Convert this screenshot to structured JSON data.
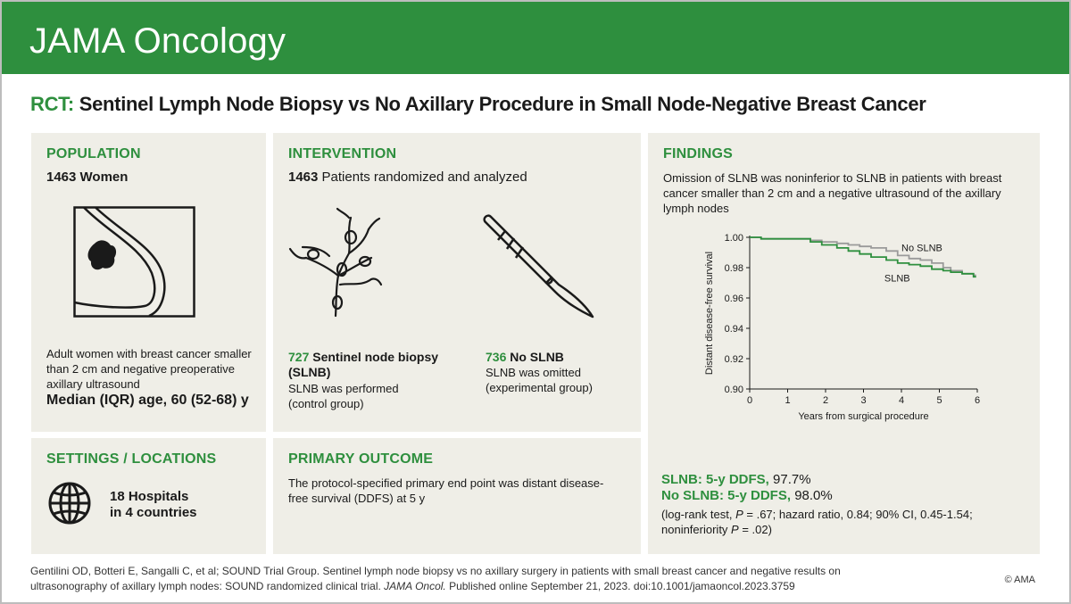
{
  "header": {
    "journal": "JAMA Oncology"
  },
  "title": {
    "tag": "RCT:",
    "text": "Sentinel Lymph Node Biopsy vs No Axillary Procedure in Small Node-Negative Breast Cancer"
  },
  "population": {
    "heading": "POPULATION",
    "count": "1463 Women",
    "icon": "breast-tumor-icon",
    "description": "Adult women with breast cancer smaller than 2 cm and negative preoperative axillary ultrasound",
    "median_age": "Median (IQR) age, 60 (52-68) y"
  },
  "intervention": {
    "heading": "INTERVENTION",
    "count": "1463",
    "count_text": "Patients randomized and analyzed",
    "arm1": {
      "count": "727",
      "name": "Sentinel node biopsy (SLNB)",
      "desc": "SLNB was performed (control group)",
      "icon": "lymph-nodes-icon"
    },
    "arm2": {
      "count": "736",
      "name": "No SLNB",
      "desc": "SLNB was omitted (experimental group)",
      "icon": "scalpel-icon"
    }
  },
  "findings": {
    "heading": "FINDINGS",
    "summary": "Omission of SLNB was noninferior to SLNB in patients with breast cancer smaller than 2 cm and a negative ultrasound of the axillary lymph nodes",
    "result1_label": "SLNB: 5-y DDFS,",
    "result1_value": "97.7%",
    "result2_label": "No SLNB: 5-y DDFS,",
    "result2_value": "98.0%",
    "stats_1": "(log-rank test, ",
    "stats_p": "P",
    "stats_2": " = .67; hazard ratio, 0.84; 90% CI, 0.45-1.54;",
    "stats_3": "noninferiority ",
    "stats_p2": "P",
    "stats_4": " = .02)"
  },
  "chart_data": {
    "type": "line",
    "xlabel": "Years from surgical procedure",
    "ylabel": "Distant disease-free survival",
    "xlim": [
      0,
      6
    ],
    "ylim": [
      0.9,
      1.0
    ],
    "xticks": [
      0,
      1,
      2,
      3,
      4,
      5,
      6
    ],
    "yticks": [
      "0.90",
      "0.92",
      "0.94",
      "0.96",
      "0.98",
      "1.00"
    ],
    "series": [
      {
        "name": "No SLNB",
        "color": "#9a9a9a",
        "x": [
          0,
          0.3,
          0.6,
          1.6,
          1.9,
          2.3,
          2.6,
          2.9,
          3.2,
          3.6,
          3.9,
          4.2,
          4.5,
          4.8,
          5.1,
          5.3,
          5.6,
          5.9
        ],
        "y": [
          1.0,
          0.999,
          0.999,
          0.998,
          0.997,
          0.996,
          0.995,
          0.994,
          0.993,
          0.991,
          0.988,
          0.986,
          0.985,
          0.983,
          0.98,
          0.978,
          0.976,
          0.975
        ]
      },
      {
        "name": "SLNB",
        "color": "#2e8f3e",
        "x": [
          0,
          0.3,
          0.6,
          1.6,
          1.9,
          2.3,
          2.6,
          2.9,
          3.2,
          3.6,
          3.9,
          4.2,
          4.5,
          4.8,
          5.1,
          5.3,
          5.6,
          5.9
        ],
        "y": [
          1.0,
          0.999,
          0.999,
          0.997,
          0.995,
          0.993,
          0.991,
          0.989,
          0.987,
          0.985,
          0.983,
          0.982,
          0.981,
          0.979,
          0.978,
          0.977,
          0.976,
          0.974
        ]
      }
    ],
    "annotations": [
      "No SLNB",
      "SLNB"
    ]
  },
  "settings": {
    "heading": "SETTINGS / LOCATIONS",
    "line1": "18 Hospitals",
    "line2": "in 4 countries",
    "icon": "globe-icon"
  },
  "outcome": {
    "heading": "PRIMARY OUTCOME",
    "text": "The protocol-specified primary end point was distant disease-free survival (DDFS) at 5 y"
  },
  "footer": {
    "citation_1": "Gentilini OD, Botteri E, Sangalli C, et al; SOUND Trial Group. Sentinel lymph node biopsy vs no axillary surgery in patients with small breast cancer and  negative results on ultrasonography of axillary lymph nodes: SOUND randomized clinical trial. ",
    "journal": "JAMA Oncol.",
    "citation_2": " Published online September 21, 2023. doi:10.1001/jamaoncol.2023.3759",
    "copyright": "© AMA"
  },
  "colors": {
    "brand": "#2e8f3e",
    "panel": "#efeee7"
  }
}
